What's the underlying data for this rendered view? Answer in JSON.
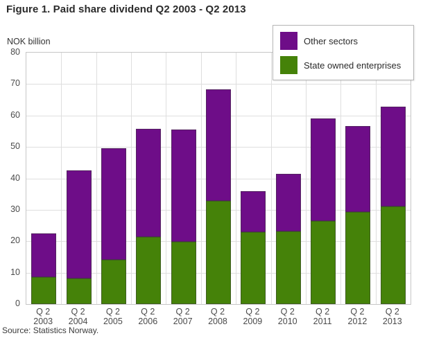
{
  "figure": {
    "title": "Figure 1. Paid share dividend Q2 2003 - Q2 2013",
    "source_note": "Source: Statistics Norway."
  },
  "legend": {
    "items": [
      {
        "label": "Other sectors",
        "color": "#6e0d88"
      },
      {
        "label": "State owned enterprises",
        "color": "#458209"
      }
    ]
  },
  "chart_data": {
    "type": "bar",
    "stacked": true,
    "title": "Figure 1. Paid share dividend Q2 2003 - Q2 2013",
    "y_axis_label": "NOK billion",
    "xlabel": "",
    "ylabel": "NOK billion",
    "ylim": [
      0,
      80
    ],
    "y_ticks": [
      0,
      10,
      20,
      30,
      40,
      50,
      60,
      70,
      80
    ],
    "grid": true,
    "legend_position": "top-right",
    "quarter_label": "Q 2",
    "categories": [
      "2003",
      "2004",
      "2005",
      "2006",
      "2007",
      "2008",
      "2009",
      "2010",
      "2011",
      "2012",
      "2013"
    ],
    "series": [
      {
        "name": "State owned enterprises",
        "color": "#458209",
        "values": [
          8.5,
          8.2,
          14.0,
          21.4,
          19.9,
          32.9,
          23.0,
          23.2,
          26.4,
          29.4,
          31.0
        ]
      },
      {
        "name": "Other sectors",
        "color": "#6e0d88",
        "values": [
          14.0,
          34.3,
          35.5,
          34.3,
          35.7,
          35.5,
          13.0,
          18.3,
          32.6,
          27.3,
          31.8
        ]
      }
    ],
    "totals": [
      22.5,
      42.5,
      49.5,
      55.7,
      55.6,
      68.4,
      36.0,
      41.5,
      59.0,
      56.7,
      62.8
    ]
  }
}
